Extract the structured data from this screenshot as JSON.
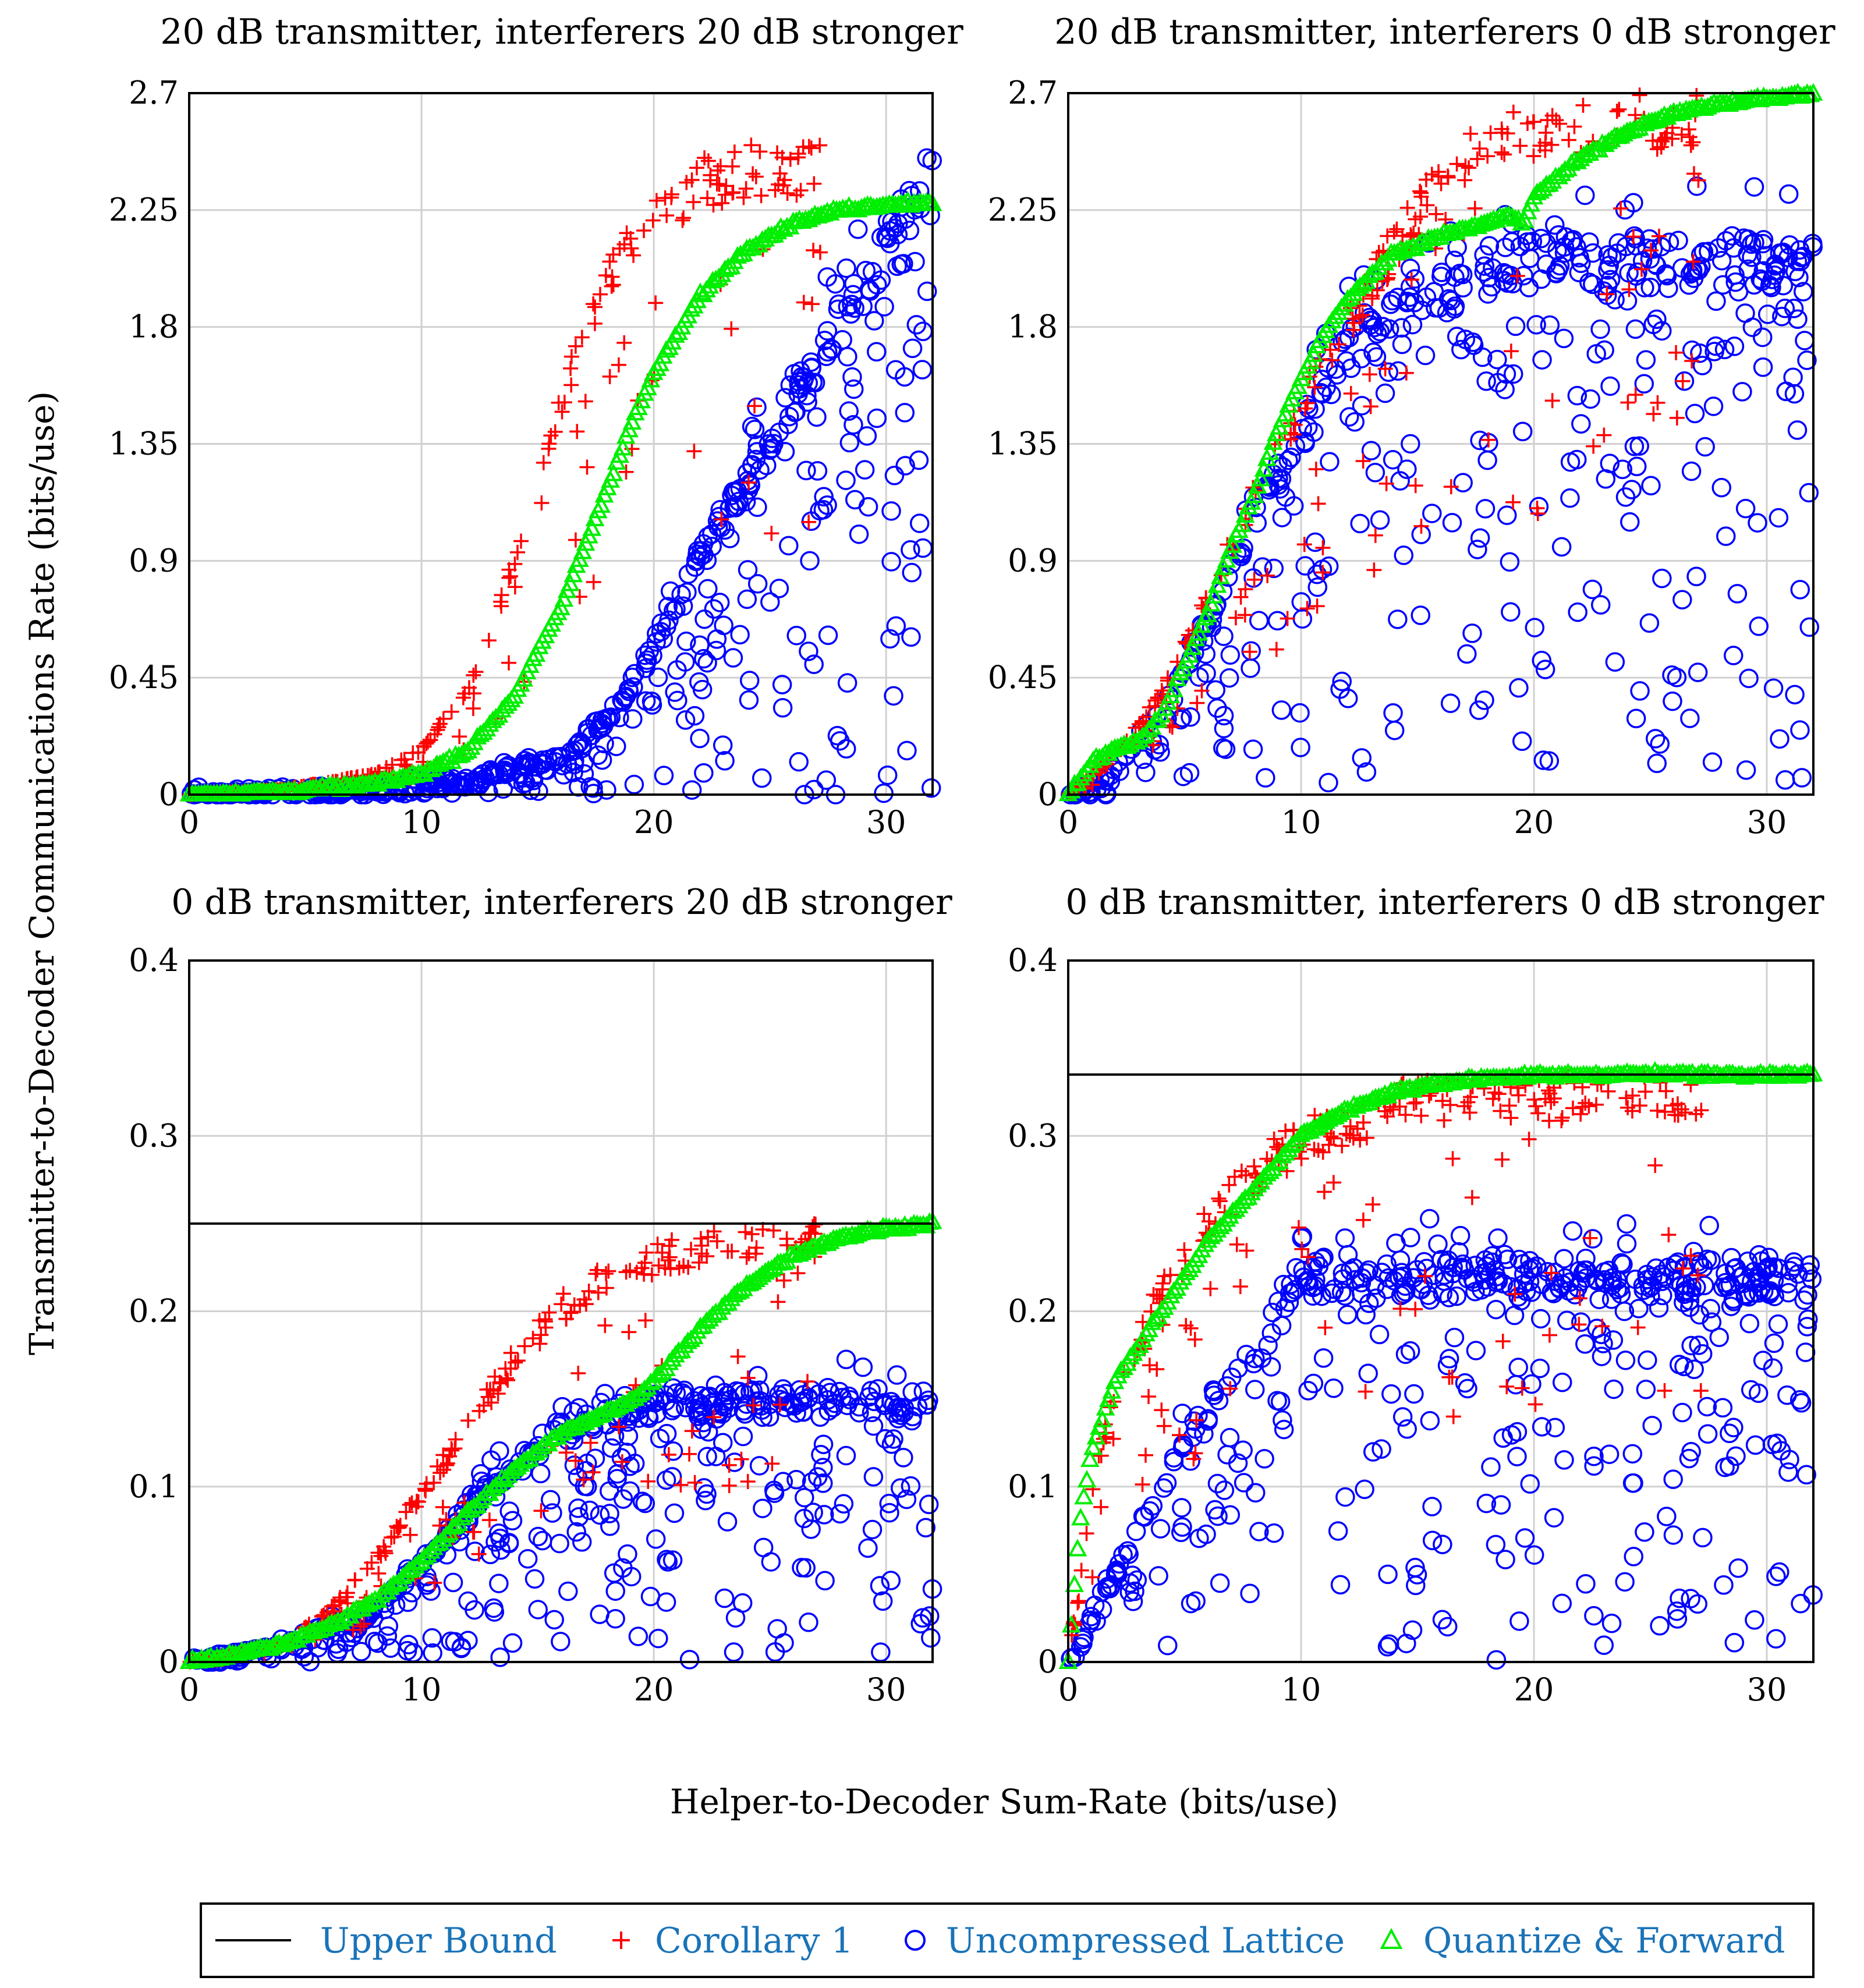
{
  "figure": {
    "ylabel": "Transmitter-to-Decoder Communications Rate (bits/use)",
    "xlabel": "Helper-to-Decoder Sum-Rate (bits/use)"
  },
  "legend": {
    "items": [
      {
        "label": "Upper Bound",
        "marker": "line",
        "color": "#000000"
      },
      {
        "label": "Corollary 1",
        "marker": "plus",
        "color": "#ff0000"
      },
      {
        "label": "Uncompressed Lattice",
        "marker": "circle",
        "color": "#0000ff"
      },
      {
        "label": "Quantize & Forward",
        "marker": "triangle",
        "color": "#00ee00"
      }
    ]
  },
  "chart_data": [
    {
      "type": "scatter",
      "title": "20 dB transmitter, interferers 20 dB stronger",
      "xlim": [
        0,
        32
      ],
      "ylim": [
        0,
        2.7
      ],
      "xticks": [
        "0",
        "10",
        "20",
        "30"
      ],
      "yticks": [
        "0",
        "0.45",
        "0.9",
        "1.35",
        "1.8",
        "2.25",
        "2.7"
      ],
      "upper_bound": 2.7,
      "series": [
        {
          "name": "Corollary 1",
          "x": [
            0,
            4,
            8,
            10,
            12,
            13,
            14,
            15,
            16,
            17,
            18,
            19,
            20,
            22,
            24
          ],
          "y": [
            0,
            0.02,
            0.08,
            0.18,
            0.42,
            0.65,
            0.95,
            1.25,
            1.55,
            1.85,
            2.05,
            2.2,
            2.3,
            2.45,
            2.5
          ]
        },
        {
          "name": "Uncompressed Lattice",
          "x": [
            0,
            8,
            12,
            16,
            18,
            20,
            22,
            24,
            26,
            28,
            30,
            32
          ],
          "y": [
            0,
            0.02,
            0.06,
            0.15,
            0.3,
            0.6,
            0.95,
            1.3,
            1.6,
            1.9,
            2.2,
            2.5
          ]
        },
        {
          "name": "Quantize & Forward",
          "x": [
            0,
            4,
            8,
            10,
            12,
            14,
            16,
            17,
            18,
            19,
            20,
            22,
            24,
            26,
            28,
            30,
            32
          ],
          "y": [
            0,
            0.01,
            0.04,
            0.08,
            0.17,
            0.38,
            0.72,
            0.95,
            1.18,
            1.42,
            1.62,
            1.92,
            2.1,
            2.2,
            2.25,
            2.27,
            2.28
          ]
        }
      ]
    },
    {
      "type": "scatter",
      "title": "20 dB transmitter, interferers 0 dB stronger",
      "xlim": [
        0,
        32
      ],
      "ylim": [
        0,
        2.7
      ],
      "xticks": [
        "0",
        "10",
        "20",
        "30"
      ],
      "yticks": [
        "0",
        "0.45",
        "0.9",
        "1.35",
        "1.8",
        "2.25",
        "2.7"
      ],
      "upper_bound": 2.7,
      "series": [
        {
          "name": "Corollary 1",
          "x": [
            0,
            2,
            4,
            6,
            8,
            10,
            12,
            14,
            16,
            18,
            20,
            22,
            25
          ],
          "y": [
            0,
            0.15,
            0.4,
            0.8,
            1.2,
            1.55,
            1.9,
            2.2,
            2.45,
            2.6,
            2.65,
            2.68,
            2.7
          ]
        },
        {
          "name": "Uncompressed Lattice",
          "x": [
            0,
            2,
            4,
            6,
            8,
            10,
            12,
            14,
            16,
            18,
            20,
            25,
            32
          ],
          "y": [
            0,
            0.1,
            0.35,
            0.7,
            1.1,
            1.45,
            1.8,
            1.95,
            2.05,
            2.1,
            2.15,
            2.15,
            2.15
          ]
        },
        {
          "name": "Quantize & Forward",
          "x": [
            0,
            1,
            2,
            3,
            4,
            5,
            6,
            7,
            8,
            9,
            10,
            11,
            12,
            13,
            14,
            16,
            18,
            19,
            19.5,
            20,
            22,
            24,
            26,
            28,
            30,
            32
          ],
          "y": [
            0,
            0.12,
            0.18,
            0.2,
            0.3,
            0.5,
            0.7,
            0.95,
            1.15,
            1.4,
            1.6,
            1.78,
            1.9,
            2.0,
            2.08,
            2.15,
            2.2,
            2.23,
            2.2,
            2.3,
            2.45,
            2.55,
            2.62,
            2.66,
            2.68,
            2.7
          ]
        }
      ]
    },
    {
      "type": "scatter",
      "title": "0 dB transmitter, interferers 20 dB stronger",
      "xlim": [
        0,
        32
      ],
      "ylim": [
        0,
        0.4
      ],
      "xticks": [
        "0",
        "10",
        "20",
        "30"
      ],
      "yticks": [
        "0",
        "0.1",
        "0.2",
        "0.3",
        "0.4"
      ],
      "upper_bound": 0.25,
      "series": [
        {
          "name": "Corollary 1",
          "x": [
            0,
            4,
            6,
            8,
            10,
            12,
            14,
            16,
            18,
            20,
            22,
            26
          ],
          "y": [
            0,
            0.01,
            0.03,
            0.06,
            0.1,
            0.14,
            0.18,
            0.21,
            0.23,
            0.24,
            0.245,
            0.25
          ]
        },
        {
          "name": "Uncompressed Lattice",
          "x": [
            0,
            4,
            8,
            10,
            12,
            14,
            16,
            18,
            20,
            24,
            28,
            32
          ],
          "y": [
            0,
            0.01,
            0.03,
            0.06,
            0.09,
            0.12,
            0.14,
            0.15,
            0.155,
            0.155,
            0.155,
            0.155
          ]
        },
        {
          "name": "Quantize & Forward",
          "x": [
            0,
            2,
            4,
            6,
            8,
            10,
            12,
            14,
            16,
            18,
            19,
            20,
            22,
            24,
            26,
            28,
            30,
            32
          ],
          "y": [
            0,
            0.004,
            0.01,
            0.02,
            0.035,
            0.057,
            0.085,
            0.11,
            0.13,
            0.143,
            0.148,
            0.16,
            0.19,
            0.215,
            0.232,
            0.242,
            0.247,
            0.25
          ]
        }
      ]
    },
    {
      "type": "scatter",
      "title": "0 dB transmitter, interferers 0 dB stronger",
      "xlim": [
        0,
        32
      ],
      "ylim": [
        0,
        0.4
      ],
      "xticks": [
        "0",
        "10",
        "20",
        "30"
      ],
      "yticks": [
        "0",
        "0.1",
        "0.2",
        "0.3",
        "0.4"
      ],
      "upper_bound": 0.335,
      "series": [
        {
          "name": "Corollary 1",
          "x": [
            0,
            1,
            2,
            4,
            6,
            8,
            10,
            12,
            14,
            16,
            32
          ],
          "y": [
            0.0,
            0.1,
            0.16,
            0.22,
            0.26,
            0.29,
            0.31,
            0.32,
            0.33,
            0.335,
            0.335
          ]
        },
        {
          "name": "Uncompressed Lattice",
          "x": [
            0,
            5,
            10,
            15,
            20,
            25,
            32
          ],
          "y": [
            0.0,
            0.13,
            0.23,
            0.23,
            0.23,
            0.23,
            0.23
          ]
        },
        {
          "name": "Quantize & Forward",
          "x": [
            0,
            0.5,
            1,
            2,
            3,
            4,
            5,
            6,
            7,
            8,
            9,
            10,
            12,
            14,
            16,
            18,
            20,
            24,
            28,
            32
          ],
          "y": [
            0.0,
            0.08,
            0.12,
            0.16,
            0.18,
            0.2,
            0.22,
            0.24,
            0.255,
            0.27,
            0.285,
            0.3,
            0.315,
            0.325,
            0.33,
            0.333,
            0.334,
            0.335,
            0.335,
            0.335
          ]
        }
      ]
    }
  ]
}
